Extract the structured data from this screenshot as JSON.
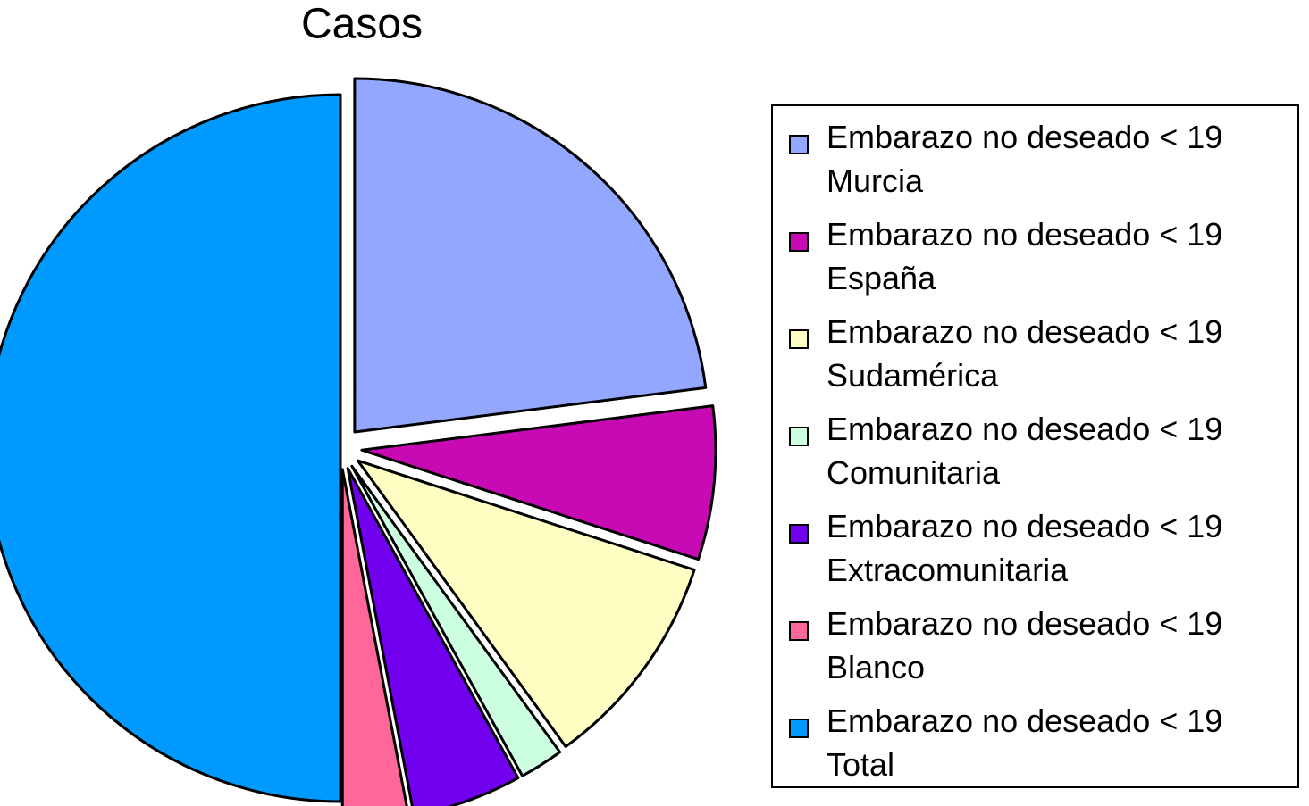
{
  "chart_data": {
    "type": "pie",
    "title": "Casos",
    "categories": [
      "Embarazo no deseado < 19 Murcia",
      "Embarazo no deseado < 19 España",
      "Embarazo no deseado < 19 Sudamérica",
      "Embarazo no deseado < 19 Comunitaria",
      "Embarazo no deseado < 19 Extracomunitaria",
      "Embarazo no deseado < 19 Blanco",
      "Embarazo no deseado < 19 Total"
    ],
    "values": [
      23,
      7,
      10,
      2,
      5,
      3,
      50
    ],
    "colors": [
      "#93a7ff",
      "#c80ab5",
      "#ffffc4",
      "#ccffe0",
      "#7000ee",
      "#ff6699",
      "#0099ff"
    ],
    "legend": "right"
  }
}
